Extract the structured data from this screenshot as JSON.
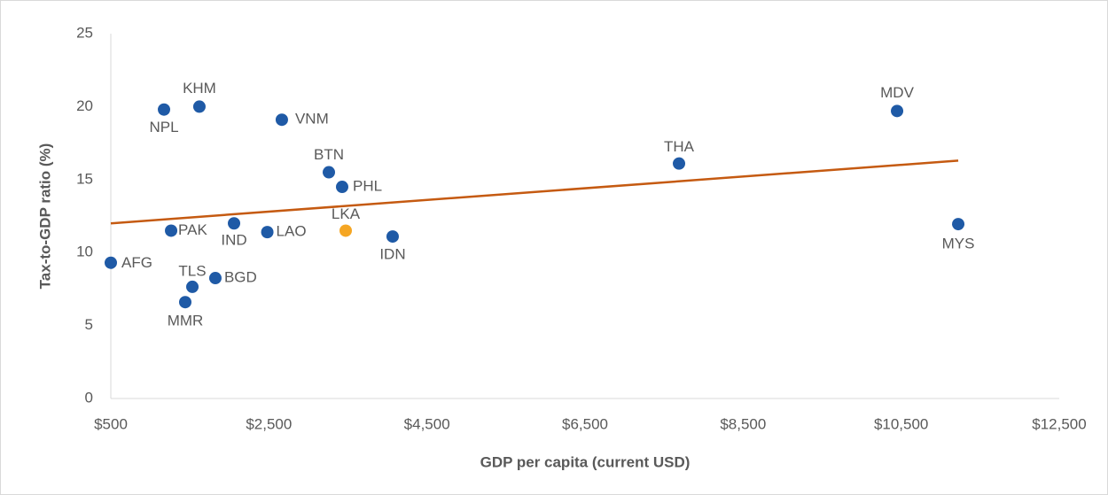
{
  "chart_data": {
    "type": "scatter",
    "xlabel": "GDP per capita (current USD)",
    "ylabel": "Tax-to-GDP ratio (%)",
    "points": {
      "labels": [
        "AFG",
        "NPL",
        "KHM",
        "VNM",
        "BTN",
        "PHL",
        "THA",
        "MDV",
        "MYS",
        "IND",
        "PAK",
        "LAO",
        "LKA",
        "IDN",
        "TLS",
        "BGD",
        "MMR"
      ],
      "x": [
        500,
        1173,
        1621,
        2664,
        3259,
        3427,
        7689,
        10448,
        11222,
        2059,
        1263,
        2480,
        3472,
        4066,
        1532,
        1823,
        1442
      ],
      "y": [
        9.3,
        19.8,
        20.0,
        19.1,
        15.5,
        14.5,
        16.1,
        19.7,
        11.95,
        12.0,
        11.5,
        11.4,
        11.5,
        11.1,
        7.65,
        8.25,
        6.6
      ],
      "colors": [
        "#1f5aa6",
        "#1f5aa6",
        "#1f5aa6",
        "#1f5aa6",
        "#1f5aa6",
        "#1f5aa6",
        "#1f5aa6",
        "#1f5aa6",
        "#1f5aa6",
        "#1f5aa6",
        "#1f5aa6",
        "#1f5aa6",
        "#f5a623",
        "#1f5aa6",
        "#1f5aa6",
        "#1f5aa6",
        "#1f5aa6"
      ]
    },
    "trendline": {
      "x": [
        500,
        11222
      ],
      "y": [
        12.0,
        16.3
      ],
      "color": "#c55a11"
    },
    "xlim": [
      500,
      12500
    ],
    "xticks": [
      {
        "value": 500,
        "label": "$500"
      },
      {
        "value": 2500,
        "label": "$2,500"
      },
      {
        "value": 4500,
        "label": "$4,500"
      },
      {
        "value": 6500,
        "label": "$6,500"
      },
      {
        "value": 8500,
        "label": "$8,500"
      },
      {
        "value": 10500,
        "label": "$10,500"
      },
      {
        "value": 12500,
        "label": "$12,500"
      }
    ],
    "ylim": [
      0,
      25
    ],
    "yticks": [
      0,
      5,
      10,
      15,
      20,
      25
    ],
    "grid": false
  }
}
